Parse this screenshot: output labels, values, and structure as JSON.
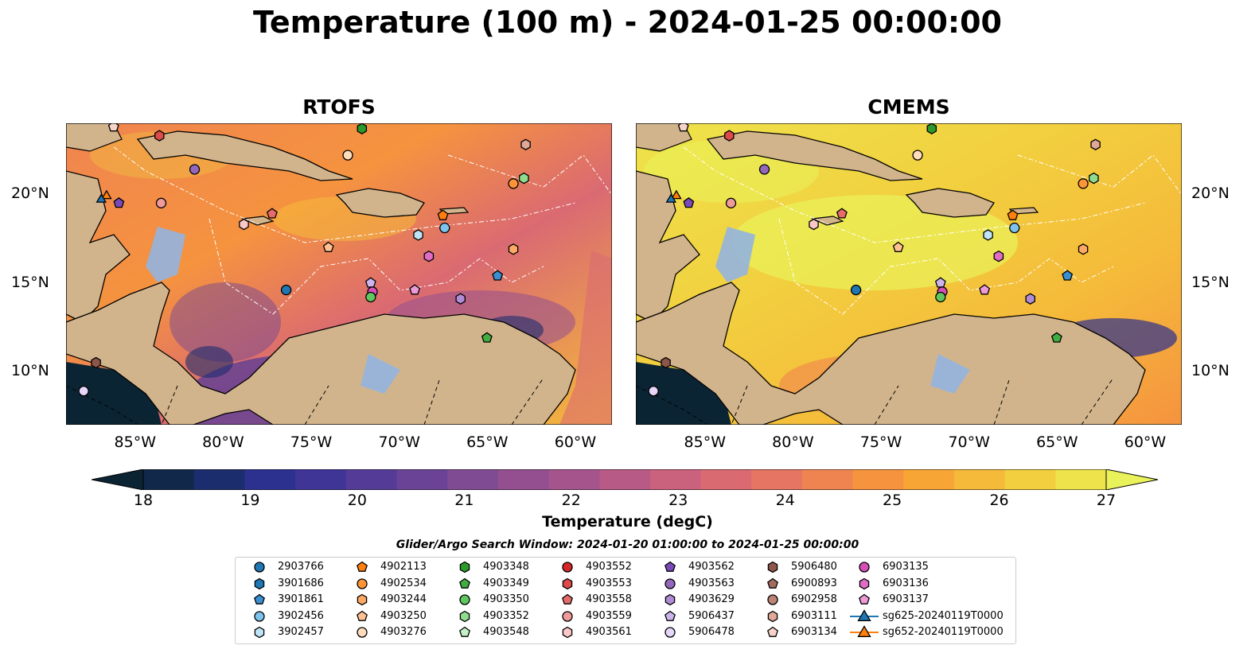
{
  "title": "Temperature (100 m) - 2024-01-25 00:00:00",
  "panels": [
    {
      "title": "RTOFS"
    },
    {
      "title": "CMEMS"
    }
  ],
  "axes": {
    "lon_ticks": [
      "85°W",
      "80°W",
      "75°W",
      "70°W",
      "65°W",
      "60°W"
    ],
    "lat_ticks": [
      "20°N",
      "15°N",
      "10°N"
    ],
    "lon_range": [
      -89,
      -58
    ],
    "lat_range": [
      7,
      24
    ]
  },
  "colorbar": {
    "ticks": [
      "18",
      "19",
      "20",
      "21",
      "22",
      "23",
      "24",
      "25",
      "26",
      "27"
    ],
    "label": "Temperature (degC)",
    "range": [
      18,
      27
    ],
    "extend": "both",
    "colors": [
      "#0b2433",
      "#12284b",
      "#1c2d6e",
      "#2c308f",
      "#3f3596",
      "#553b98",
      "#6a4396",
      "#7f4b93",
      "#934f90",
      "#a5548c",
      "#b85a86",
      "#ca617d",
      "#da6a72",
      "#e67663",
      "#f08450",
      "#f5933f",
      "#f7a636",
      "#f5ba3a",
      "#f2cf3f",
      "#eee34a",
      "#e9f25a"
    ]
  },
  "search_window": "Glider/Argo Search Window: 2024-01-20 01:00:00 to 2024-01-25 00:00:00",
  "legend": {
    "columns": [
      [
        {
          "label": "2903766",
          "marker": "circle",
          "color": "#1f77b4"
        },
        {
          "label": "3901686",
          "marker": "hexagon",
          "color": "#1f77b4"
        },
        {
          "label": "3901861",
          "marker": "pentagon",
          "color": "#3a8fd0"
        },
        {
          "label": "3902456",
          "marker": "circle",
          "color": "#7ec3ec"
        },
        {
          "label": "3902457",
          "marker": "hexagon",
          "color": "#bfe4f7"
        }
      ],
      [
        {
          "label": "4902113",
          "marker": "pentagon",
          "color": "#ff7f0e"
        },
        {
          "label": "4902534",
          "marker": "circle",
          "color": "#ff9436"
        },
        {
          "label": "4903244",
          "marker": "hexagon",
          "color": "#ffa964"
        },
        {
          "label": "4903250",
          "marker": "pentagon",
          "color": "#ffc191"
        },
        {
          "label": "4903276",
          "marker": "circle",
          "color": "#ffdcbc"
        }
      ],
      [
        {
          "label": "4903348",
          "marker": "hexagon",
          "color": "#2a9b2a"
        },
        {
          "label": "4903349",
          "marker": "pentagon",
          "color": "#41ae41"
        },
        {
          "label": "4903350",
          "marker": "circle",
          "color": "#5fc75f"
        },
        {
          "label": "4903352",
          "marker": "hexagon",
          "color": "#8fdc8f"
        },
        {
          "label": "4903548",
          "marker": "pentagon",
          "color": "#c4f0c4"
        }
      ],
      [
        {
          "label": "4903552",
          "marker": "circle",
          "color": "#d62728"
        },
        {
          "label": "4903553",
          "marker": "hexagon",
          "color": "#de4a4a"
        },
        {
          "label": "4903558",
          "marker": "pentagon",
          "color": "#e66c6c"
        },
        {
          "label": "4903559",
          "marker": "circle",
          "color": "#f09a9a"
        },
        {
          "label": "4903561",
          "marker": "hexagon",
          "color": "#fac8c8"
        }
      ],
      [
        {
          "label": "4903562",
          "marker": "pentagon",
          "color": "#7b4ab8"
        },
        {
          "label": "4903563",
          "marker": "circle",
          "color": "#9467bd"
        },
        {
          "label": "4903629",
          "marker": "hexagon",
          "color": "#b08bd6"
        },
        {
          "label": "5906437",
          "marker": "pentagon",
          "color": "#cdb4ec"
        },
        {
          "label": "5906478",
          "marker": "circle",
          "color": "#e6d6f8"
        }
      ],
      [
        {
          "label": "5906480",
          "marker": "hexagon",
          "color": "#8c564b"
        },
        {
          "label": "6900893",
          "marker": "pentagon",
          "color": "#a46b5f"
        },
        {
          "label": "6902958",
          "marker": "circle",
          "color": "#bd8377"
        },
        {
          "label": "6903111",
          "marker": "hexagon",
          "color": "#e0a898"
        },
        {
          "label": "6903134",
          "marker": "pentagon",
          "color": "#f7d3c9"
        }
      ],
      [
        {
          "label": "6903135",
          "marker": "circle",
          "color": "#d64fb8"
        },
        {
          "label": "6903136",
          "marker": "hexagon",
          "color": "#e06cc6"
        },
        {
          "label": "6903137",
          "marker": "pentagon",
          "color": "#ee9ad8"
        },
        {
          "label": "sg625-20240119T0000",
          "marker": "triangle-line",
          "color": "#1f77b4"
        },
        {
          "label": "sg652-20240119T0000",
          "marker": "triangle-line",
          "color": "#ff7f0e"
        }
      ]
    ]
  },
  "floats_rtofs": [
    {
      "lon": -86.3,
      "lat": 23.8,
      "marker": "pentagon",
      "color": "#f7d3c9"
    },
    {
      "lon": -83.7,
      "lat": 23.3,
      "marker": "hexagon",
      "color": "#de4a4a"
    },
    {
      "lon": -72.2,
      "lat": 23.7,
      "marker": "hexagon",
      "color": "#2a9b2a"
    },
    {
      "lon": -73.0,
      "lat": 22.2,
      "marker": "circle",
      "color": "#ffdcbc"
    },
    {
      "lon": -81.7,
      "lat": 21.4,
      "marker": "circle",
      "color": "#9467bd"
    },
    {
      "lon": -62.9,
      "lat": 22.8,
      "marker": "hexagon",
      "color": "#e0a898"
    },
    {
      "lon": -63.6,
      "lat": 20.6,
      "marker": "circle",
      "color": "#ff9436"
    },
    {
      "lon": -63.0,
      "lat": 20.9,
      "marker": "hexagon",
      "color": "#8fdc8f"
    },
    {
      "lon": -86.0,
      "lat": 19.5,
      "marker": "pentagon",
      "color": "#7b4ab8"
    },
    {
      "lon": -83.6,
      "lat": 19.5,
      "marker": "circle",
      "color": "#f09a9a"
    },
    {
      "lon": -77.3,
      "lat": 18.9,
      "marker": "pentagon",
      "color": "#e66c6c"
    },
    {
      "lon": -78.9,
      "lat": 18.3,
      "marker": "hexagon",
      "color": "#fac8c8"
    },
    {
      "lon": -67.6,
      "lat": 18.8,
      "marker": "pentagon",
      "color": "#ff7f0e"
    },
    {
      "lon": -67.5,
      "lat": 18.1,
      "marker": "circle",
      "color": "#7ec3ec"
    },
    {
      "lon": -69.0,
      "lat": 17.7,
      "marker": "hexagon",
      "color": "#bfe4f7"
    },
    {
      "lon": -74.1,
      "lat": 17.0,
      "marker": "pentagon",
      "color": "#ffc191"
    },
    {
      "lon": -63.6,
      "lat": 16.9,
      "marker": "hexagon",
      "color": "#ffa964"
    },
    {
      "lon": -68.4,
      "lat": 16.5,
      "marker": "hexagon",
      "color": "#e06cc6"
    },
    {
      "lon": -64.5,
      "lat": 15.4,
      "marker": "pentagon",
      "color": "#3a8fd0"
    },
    {
      "lon": -71.7,
      "lat": 15.0,
      "marker": "pentagon",
      "color": "#cdb4ec"
    },
    {
      "lon": -76.5,
      "lat": 14.6,
      "marker": "circle",
      "color": "#1f77b4"
    },
    {
      "lon": -71.6,
      "lat": 14.5,
      "marker": "circle",
      "color": "#d64fb8"
    },
    {
      "lon": -71.7,
      "lat": 14.2,
      "marker": "circle",
      "color": "#5fc75f"
    },
    {
      "lon": -69.2,
      "lat": 14.6,
      "marker": "pentagon",
      "color": "#ee9ad8"
    },
    {
      "lon": -66.6,
      "lat": 14.1,
      "marker": "hexagon",
      "color": "#b08bd6"
    },
    {
      "lon": -65.1,
      "lat": 11.9,
      "marker": "pentagon",
      "color": "#41ae41"
    },
    {
      "lon": -87.3,
      "lat": 10.5,
      "marker": "hexagon",
      "color": "#8c564b"
    },
    {
      "lon": -88.0,
      "lat": 8.9,
      "marker": "circle",
      "color": "#e6d6f8"
    },
    {
      "lon": -86.7,
      "lat": 19.9,
      "marker": "triangle",
      "color": "#ff7f0e"
    },
    {
      "lon": -87.0,
      "lat": 19.7,
      "marker": "triangle",
      "color": "#1f77b4"
    }
  ]
}
